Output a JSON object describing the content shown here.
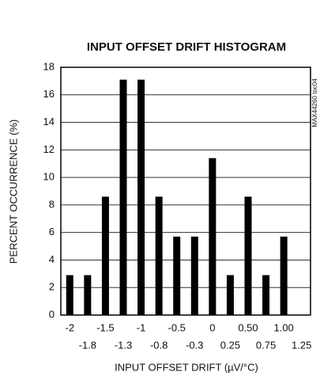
{
  "chart_data": {
    "type": "bar",
    "title": "INPUT OFFSET DRIFT HISTOGRAM",
    "x_label": "INPUT OFFSET DRIFT (µV/°C)",
    "y_label": "PERCENT OCCURRENCE (%)",
    "annotation": "MAX44260 toc04",
    "categories": [
      "-2",
      "-1.8",
      "-1.5",
      "-1.3",
      "-1",
      "-0.8",
      "-0.5",
      "-0.3",
      "0",
      "0.25",
      "0.50",
      "0.75",
      "1.00",
      "1.25"
    ],
    "values": [
      2.9,
      2.9,
      8.6,
      17.1,
      17.1,
      8.6,
      5.7,
      5.7,
      11.4,
      2.9,
      8.6,
      2.9,
      5.7,
      0
    ],
    "color": "#000000",
    "ylim": [
      0,
      18
    ],
    "yticks": [
      0,
      2,
      4,
      6,
      8,
      10,
      12,
      14,
      16,
      18
    ],
    "grid": true
  }
}
